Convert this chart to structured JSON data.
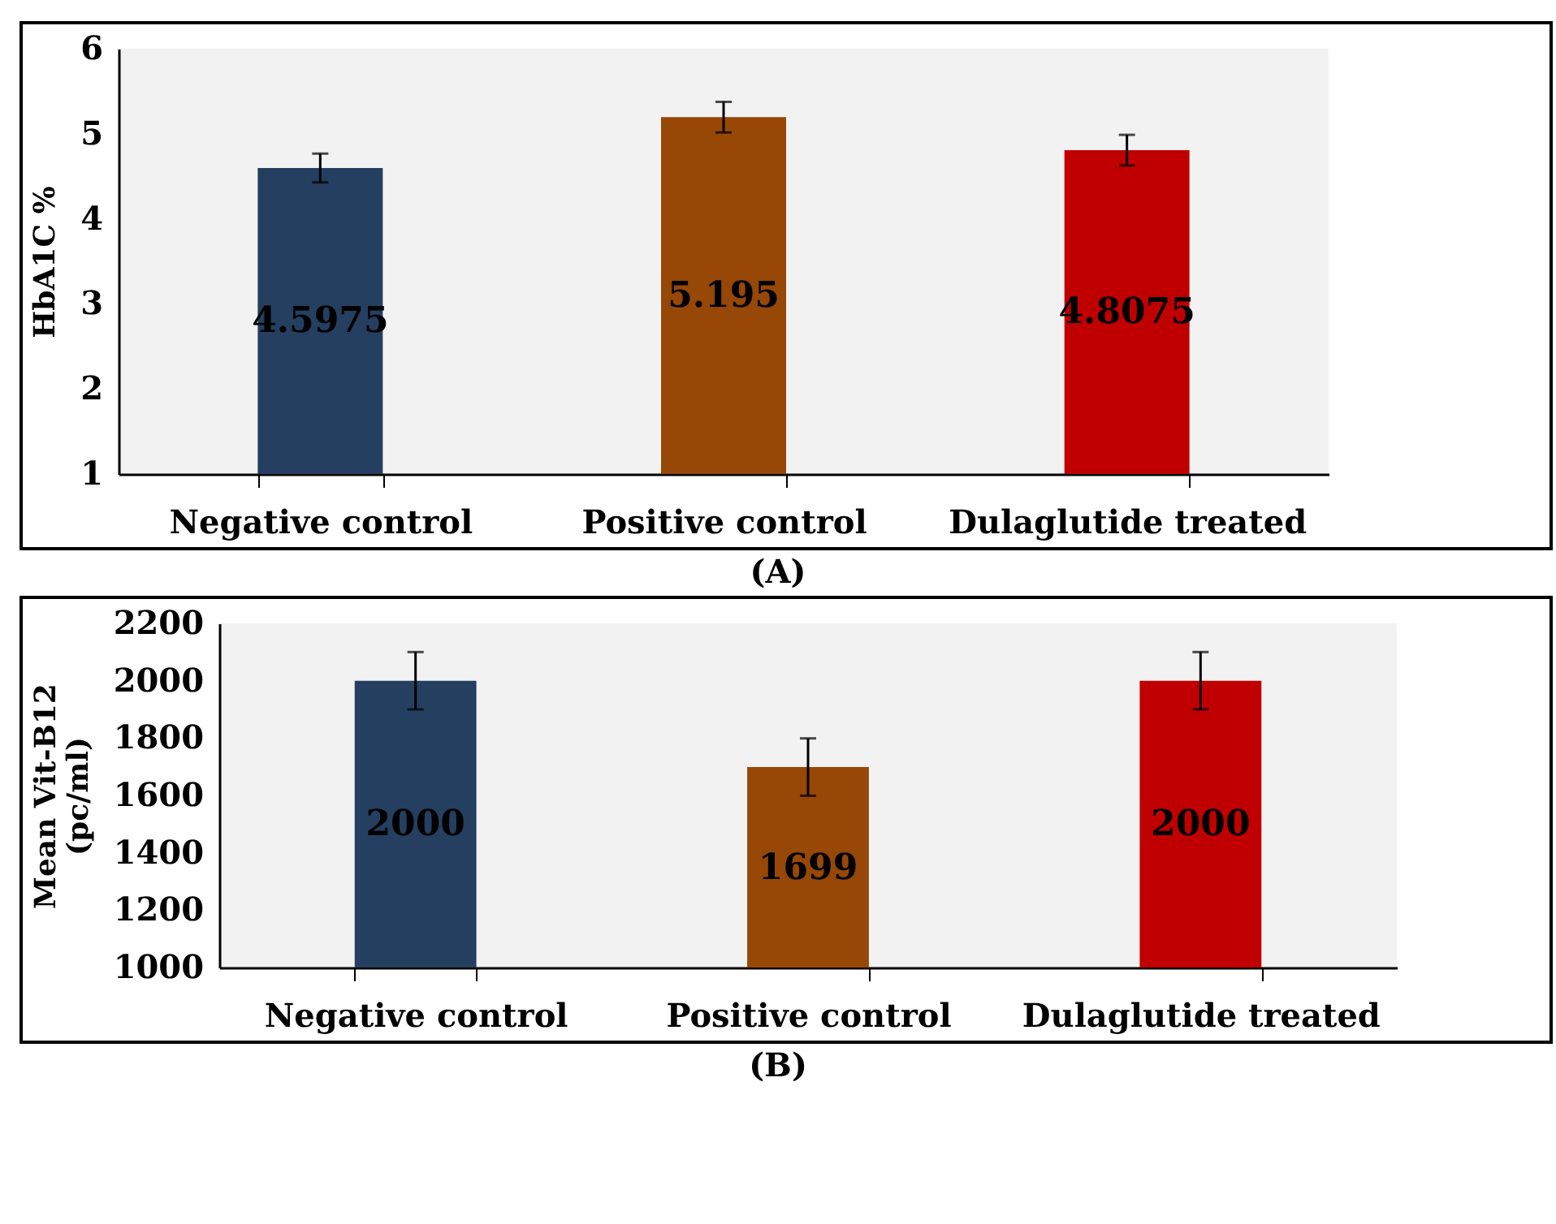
{
  "chart_data": [
    {
      "type": "bar",
      "title": "(A)",
      "ylabel": "HbA1C %",
      "categories": [
        "Negative control",
        "Positive control",
        "Dulaglutide treated"
      ],
      "values": [
        4.5975,
        5.195,
        4.8075
      ],
      "colors": [
        "#243f60",
        "#974706",
        "#c00000"
      ],
      "errors": [
        0.17,
        0.18,
        0.18
      ],
      "ylim": [
        1,
        6
      ],
      "yticks": [
        1,
        2,
        3,
        4,
        5,
        6
      ],
      "data_labels": true
    },
    {
      "type": "bar",
      "title": "(B)",
      "ylabel": "Mean Vit-B12 (pc/ml)",
      "categories": [
        "Negative control",
        "Positive control",
        "Dulaglutide treated"
      ],
      "values": [
        2000,
        1699,
        2000
      ],
      "colors": [
        "#243f60",
        "#974706",
        "#c00000"
      ],
      "errors": [
        100,
        100,
        100
      ],
      "ylim": [
        1000,
        2200
      ],
      "yticks": [
        1000,
        1200,
        1400,
        1600,
        1800,
        2000,
        2200
      ],
      "data_labels": true
    }
  ]
}
